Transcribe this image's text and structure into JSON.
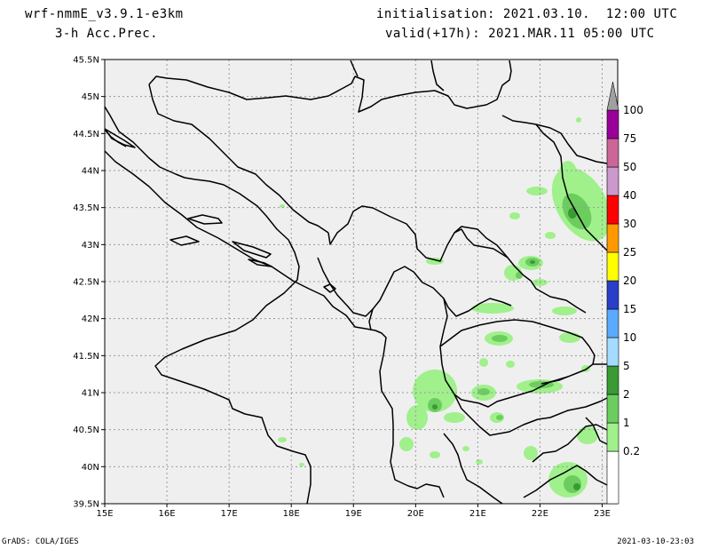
{
  "header": {
    "model": "wrf-nmmE_v3.9.1-e3km",
    "field": "3-h Acc.Prec.",
    "init": "initialisation: 2021.03.10.  12:00 UTC",
    "valid": "valid(+17h): 2021.MAR.11 05:00 UTC"
  },
  "footer": {
    "left": "GrADS: COLA/IGES",
    "right": "2021-03-10-23:03"
  },
  "axes": {
    "lat_labels": [
      "45.5N",
      "45N",
      "44.5N",
      "44N",
      "43.5N",
      "43N",
      "42.5N",
      "42N",
      "41.5N",
      "41N",
      "40.5N",
      "40N",
      "39.5N"
    ],
    "lon_labels": [
      "15E",
      "16E",
      "17E",
      "18E",
      "19E",
      "20E",
      "21E",
      "22E",
      "23E"
    ]
  },
  "colorbar": {
    "levels": [
      "0.2",
      "1",
      "2",
      "5",
      "10",
      "15",
      "20",
      "25",
      "30",
      "40",
      "50",
      "75",
      "100"
    ],
    "colors": [
      "#a0f08c",
      "#6ccd5f",
      "#3a9a34",
      "#a4dcff",
      "#5aaaff",
      "#2a3ec8",
      "#ffff00",
      "#ff9900",
      "#ff0000",
      "#cc99cc",
      "#cc6699",
      "#990099",
      "#a0a0a0"
    ]
  },
  "map": {
    "land_color": "#efefef",
    "coast_color": "#000000",
    "grid_color": "#9a9a9a",
    "lon_min": 15,
    "lon_max": 23.25,
    "lat_min": 39.5,
    "lat_max": 45.5
  }
}
